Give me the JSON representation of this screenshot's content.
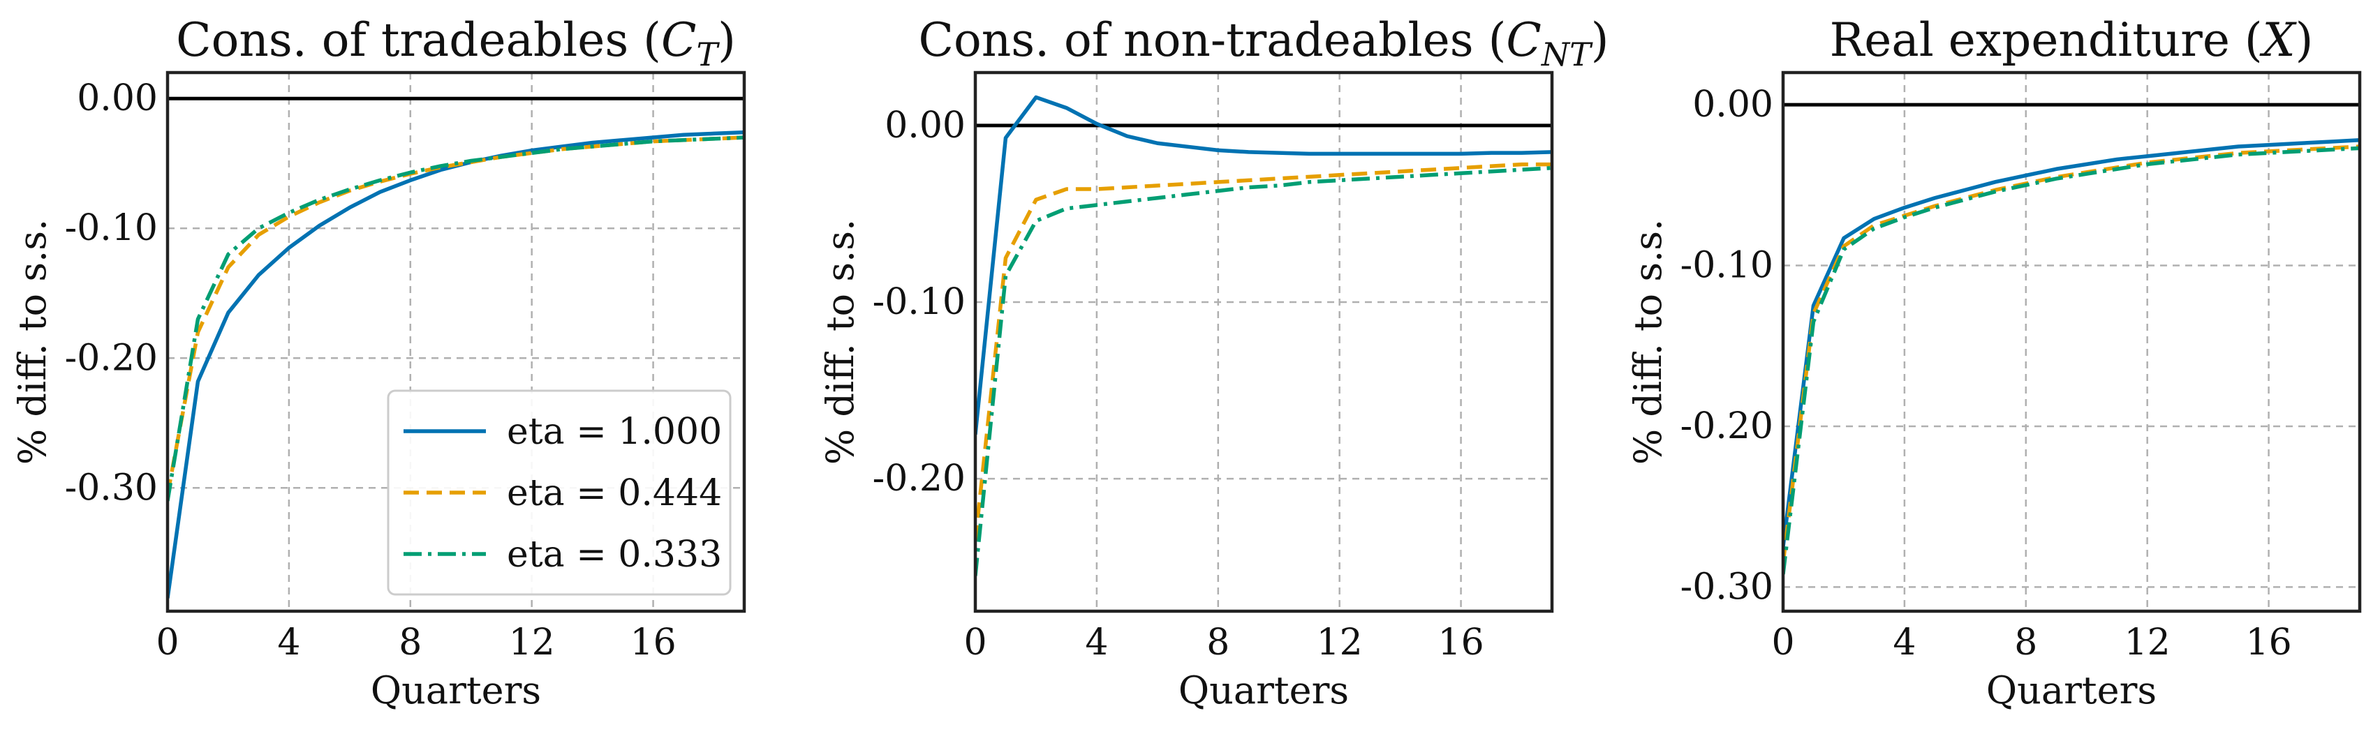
{
  "colors": {
    "series": [
      "#0072B2",
      "#E69F00",
      "#009E73"
    ],
    "zero_line": "#000000",
    "grid": "#b0b0b0"
  },
  "legend_labels": [
    "eta = 1.000",
    "eta = 0.444",
    "eta = 0.333"
  ],
  "chart_data": [
    {
      "type": "line",
      "title": "Cons. of tradeables (",
      "title_var": "C",
      "title_sub": "T",
      "title_end": ")",
      "xlabel": "Quarters",
      "ylabel": "% diff. to s.s.",
      "xlim": [
        0,
        19
      ],
      "ylim": [
        -0.395,
        0.02
      ],
      "xticks": [
        0,
        4,
        8,
        12,
        16
      ],
      "yticks": [
        0.0,
        -0.1,
        -0.2,
        -0.3
      ],
      "ytick_labels": [
        "0.00",
        "-0.10",
        "-0.20",
        "-0.30"
      ],
      "grid": true,
      "zero_line": true,
      "legend_position": "bottom-right",
      "x": [
        0,
        1,
        2,
        3,
        4,
        5,
        6,
        7,
        8,
        9,
        10,
        11,
        12,
        13,
        14,
        15,
        16,
        17,
        18,
        19
      ],
      "series": [
        {
          "name": "eta = 1.000",
          "style": "solid",
          "values": [
            -0.385,
            -0.218,
            -0.165,
            -0.136,
            -0.115,
            -0.098,
            -0.084,
            -0.072,
            -0.063,
            -0.055,
            -0.049,
            -0.044,
            -0.04,
            -0.037,
            -0.034,
            -0.032,
            -0.03,
            -0.028,
            -0.027,
            -0.026
          ]
        },
        {
          "name": "eta = 0.444",
          "style": "dashed",
          "values": [
            -0.305,
            -0.18,
            -0.13,
            -0.105,
            -0.091,
            -0.08,
            -0.071,
            -0.064,
            -0.058,
            -0.053,
            -0.049,
            -0.045,
            -0.042,
            -0.039,
            -0.037,
            -0.035,
            -0.033,
            -0.032,
            -0.031,
            -0.03
          ]
        },
        {
          "name": "eta = 0.333",
          "style": "dashdot",
          "values": [
            -0.31,
            -0.17,
            -0.12,
            -0.1,
            -0.088,
            -0.078,
            -0.07,
            -0.063,
            -0.057,
            -0.052,
            -0.048,
            -0.045,
            -0.042,
            -0.039,
            -0.037,
            -0.035,
            -0.033,
            -0.032,
            -0.031,
            -0.03
          ]
        }
      ]
    },
    {
      "type": "line",
      "title": "Cons. of non-tradeables (",
      "title_var": "C",
      "title_sub": "NT",
      "title_end": ")",
      "xlabel": "Quarters",
      "ylabel": "% diff. to s.s.",
      "xlim": [
        0,
        19
      ],
      "ylim": [
        -0.275,
        0.03
      ],
      "xticks": [
        0,
        4,
        8,
        12,
        16
      ],
      "yticks": [
        0.0,
        -0.1,
        -0.2
      ],
      "ytick_labels": [
        "0.00",
        "-0.10",
        "-0.20"
      ],
      "grid": true,
      "zero_line": true,
      "x": [
        0,
        1,
        2,
        3,
        4,
        5,
        6,
        7,
        8,
        9,
        10,
        11,
        12,
        13,
        14,
        15,
        16,
        17,
        18,
        19
      ],
      "series": [
        {
          "name": "eta = 1.000",
          "style": "solid",
          "values": [
            -0.175,
            -0.007,
            0.016,
            0.01,
            0.001,
            -0.006,
            -0.01,
            -0.012,
            -0.014,
            -0.015,
            -0.0155,
            -0.016,
            -0.016,
            -0.016,
            -0.016,
            -0.016,
            -0.016,
            -0.0155,
            -0.0155,
            -0.015
          ]
        },
        {
          "name": "eta = 0.444",
          "style": "dashed",
          "values": [
            -0.235,
            -0.075,
            -0.042,
            -0.036,
            -0.036,
            -0.035,
            -0.034,
            -0.033,
            -0.032,
            -0.031,
            -0.03,
            -0.029,
            -0.028,
            -0.027,
            -0.026,
            -0.025,
            -0.024,
            -0.023,
            -0.022,
            -0.022
          ]
        },
        {
          "name": "eta = 0.333",
          "style": "dashdot",
          "values": [
            -0.255,
            -0.085,
            -0.054,
            -0.047,
            -0.045,
            -0.043,
            -0.041,
            -0.039,
            -0.037,
            -0.035,
            -0.034,
            -0.032,
            -0.031,
            -0.03,
            -0.029,
            -0.028,
            -0.027,
            -0.026,
            -0.025,
            -0.024
          ]
        }
      ]
    },
    {
      "type": "line",
      "title": "Real expenditure (",
      "title_var": "X",
      "title_sub": "",
      "title_end": ")",
      "xlabel": "Quarters",
      "ylabel": "% diff. to s.s.",
      "xlim": [
        0,
        19
      ],
      "ylim": [
        -0.315,
        0.02
      ],
      "xticks": [
        0,
        4,
        8,
        12,
        16
      ],
      "yticks": [
        0.0,
        -0.1,
        -0.2,
        -0.3
      ],
      "ytick_labels": [
        "0.00",
        "-0.10",
        "-0.20",
        "-0.30"
      ],
      "grid": true,
      "zero_line": true,
      "x": [
        0,
        1,
        2,
        3,
        4,
        5,
        6,
        7,
        8,
        9,
        10,
        11,
        12,
        13,
        14,
        15,
        16,
        17,
        18,
        19
      ],
      "series": [
        {
          "name": "eta = 1.000",
          "style": "solid",
          "values": [
            -0.275,
            -0.125,
            -0.083,
            -0.071,
            -0.064,
            -0.058,
            -0.053,
            -0.048,
            -0.044,
            -0.04,
            -0.037,
            -0.034,
            -0.032,
            -0.03,
            -0.028,
            -0.026,
            -0.025,
            -0.024,
            -0.023,
            -0.022
          ]
        },
        {
          "name": "eta = 0.444",
          "style": "dashed",
          "values": [
            -0.285,
            -0.13,
            -0.088,
            -0.075,
            -0.069,
            -0.063,
            -0.058,
            -0.053,
            -0.049,
            -0.045,
            -0.042,
            -0.039,
            -0.036,
            -0.034,
            -0.032,
            -0.03,
            -0.029,
            -0.028,
            -0.027,
            -0.026
          ]
        },
        {
          "name": "eta = 0.333",
          "style": "dashdot",
          "values": [
            -0.292,
            -0.135,
            -0.09,
            -0.077,
            -0.07,
            -0.064,
            -0.059,
            -0.054,
            -0.05,
            -0.046,
            -0.043,
            -0.04,
            -0.037,
            -0.035,
            -0.033,
            -0.031,
            -0.03,
            -0.029,
            -0.028,
            -0.027
          ]
        }
      ]
    }
  ]
}
